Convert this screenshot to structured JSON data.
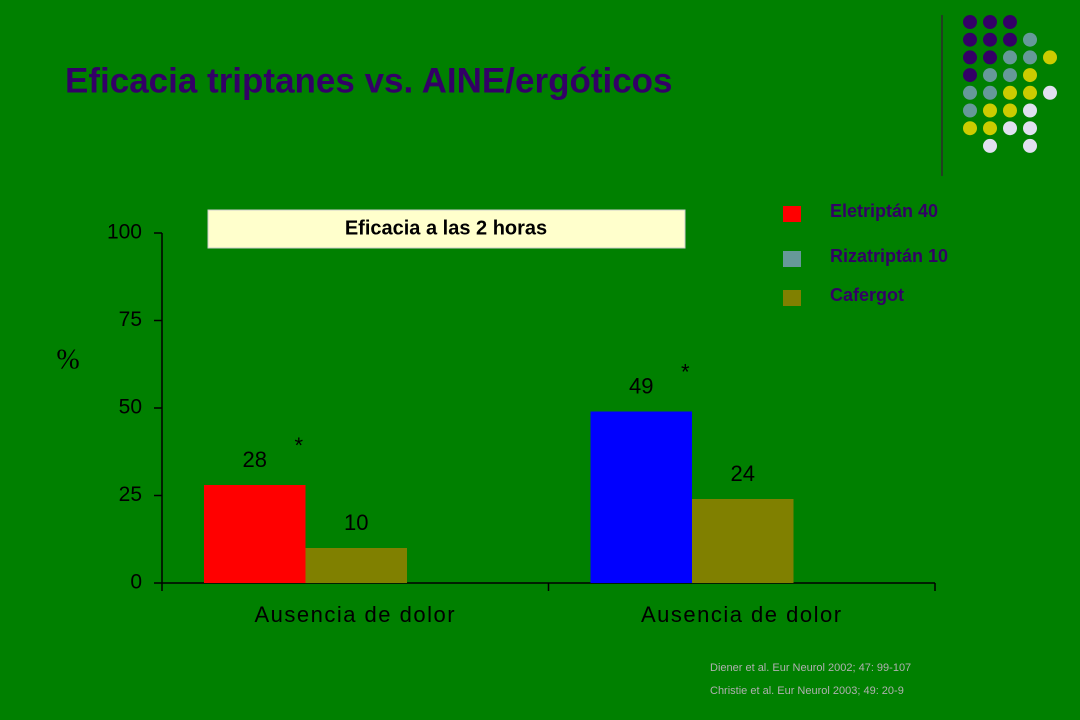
{
  "title": "Eficacia triptanes vs. AINE/ergóticos",
  "references": [
    "Diener et al. Eur Neurol 2002; 47: 99-107",
    "Christie et al. Eur Neurol 2003; 49: 20-9"
  ],
  "chart_data": {
    "type": "bar",
    "title": "Eficacia a las 2 horas",
    "ylabel": "%",
    "categories": [
      "Ausencia de dolor",
      "Ausencia de dolor"
    ],
    "series": [
      {
        "name": "Eletriptán 40",
        "color": "#ff0000",
        "values": [
          28,
          null
        ],
        "value_notes": [
          "*",
          null
        ]
      },
      {
        "name": "Rizatriptán 10",
        "color": "#669999",
        "bar_color": "#0000ff",
        "values": [
          null,
          49
        ],
        "value_notes": [
          null,
          "*"
        ]
      },
      {
        "name": "Cafergot",
        "color": "#808000",
        "values": [
          10,
          24
        ]
      }
    ],
    "ylim": [
      0,
      100
    ],
    "yticks": [
      0,
      25,
      50,
      75,
      100
    ],
    "grid": false
  }
}
